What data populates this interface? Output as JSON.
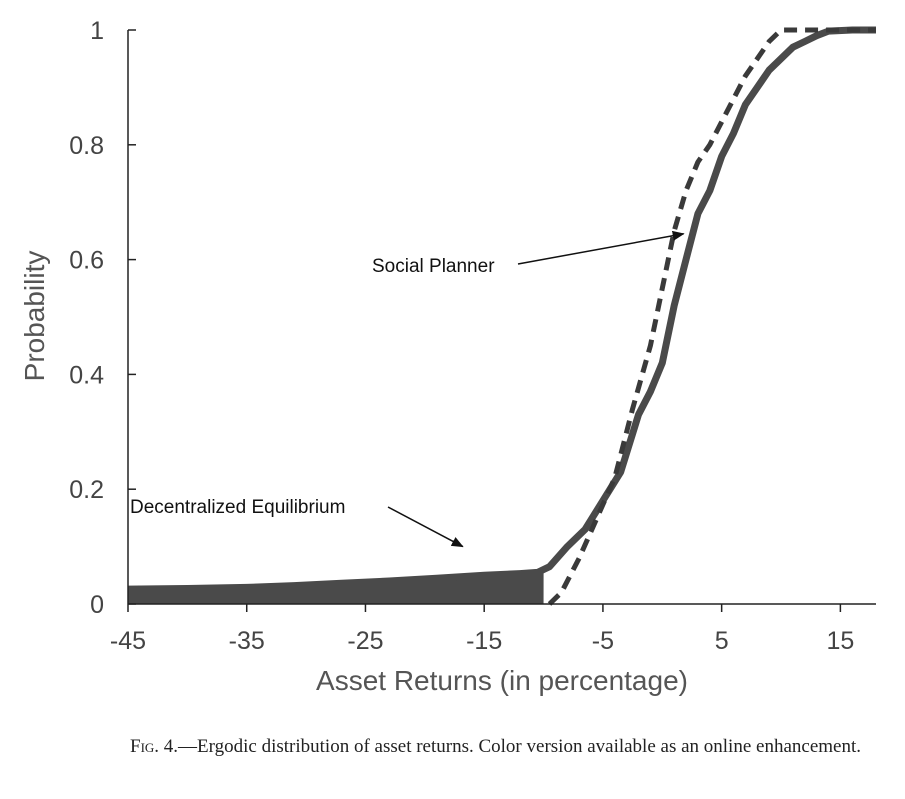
{
  "chart_data": {
    "type": "line",
    "xlabel": "Asset Returns  (in percentage)",
    "ylabel": "Probability",
    "xlim": [
      -45,
      18
    ],
    "ylim": [
      0,
      1
    ],
    "x_ticks": [
      "-45",
      "-35",
      "-25",
      "-15",
      "-5",
      "5",
      "15"
    ],
    "y_ticks": [
      "0",
      "0.2",
      "0.4",
      "0.6",
      "0.8",
      "1"
    ],
    "grid": false,
    "series": [
      {
        "name": "Decentralized Equilibrium",
        "style": "solid",
        "color": "#4a4a4a",
        "x": [
          -45,
          -40,
          -35,
          -31,
          -27,
          -23,
          -19,
          -15,
          -12,
          -10.5,
          -9.5,
          -8,
          -6.5,
          -5,
          -3.5,
          -2,
          -1,
          0,
          1,
          2,
          3,
          4,
          5,
          6,
          7,
          8,
          9,
          10,
          11,
          12,
          13,
          14,
          16,
          18
        ],
        "y": [
          0.026,
          0.027,
          0.029,
          0.032,
          0.036,
          0.04,
          0.045,
          0.05,
          0.053,
          0.055,
          0.065,
          0.1,
          0.13,
          0.18,
          0.23,
          0.33,
          0.37,
          0.42,
          0.52,
          0.6,
          0.68,
          0.72,
          0.78,
          0.82,
          0.87,
          0.9,
          0.93,
          0.95,
          0.97,
          0.98,
          0.99,
          0.998,
          1.0,
          1.0
        ],
        "filled_region": {
          "x_from": -45,
          "x_to": -10
        }
      },
      {
        "name": "Social Planner",
        "style": "dashed",
        "color": "#3a3a3a",
        "x": [
          -9.5,
          -8.5,
          -7,
          -5.5,
          -4,
          -2.5,
          -1,
          0,
          1,
          2,
          3,
          4,
          5,
          6,
          7,
          8,
          9,
          10,
          11,
          12,
          14,
          16,
          18
        ],
        "y": [
          0.0,
          0.02,
          0.08,
          0.15,
          0.22,
          0.34,
          0.45,
          0.55,
          0.65,
          0.72,
          0.77,
          0.8,
          0.84,
          0.88,
          0.92,
          0.95,
          0.98,
          1.0,
          1.0,
          1.0,
          1.0,
          1.0,
          1.0
        ]
      }
    ],
    "annotations": [
      {
        "text": "Social Planner",
        "arrow_to": [
          1.8,
          0.645
        ]
      },
      {
        "text": "Decentralized Equilibrium",
        "arrow_to": [
          -16.8,
          0.1
        ]
      }
    ]
  },
  "caption": {
    "label": "Fig. 4.",
    "text": "—Ergodic distribution of asset returns. Color version available as an online enhancement."
  }
}
